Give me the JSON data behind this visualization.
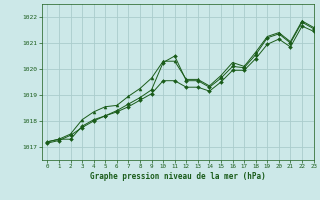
{
  "title": "Graphe pression niveau de la mer (hPa)",
  "bg_color": "#cce8e8",
  "grid_color": "#aacccc",
  "line_color": "#1a5c1a",
  "xlim": [
    -0.5,
    23
  ],
  "ylim": [
    1016.5,
    1022.5
  ],
  "yticks": [
    1017,
    1018,
    1019,
    1020,
    1021,
    1022
  ],
  "xticks": [
    0,
    1,
    2,
    3,
    4,
    5,
    6,
    7,
    8,
    9,
    10,
    11,
    12,
    13,
    14,
    15,
    16,
    17,
    18,
    19,
    20,
    21,
    22,
    23
  ],
  "series1_x": [
    0,
    1,
    2,
    3,
    4,
    5,
    6,
    7,
    8,
    9,
    10,
    11,
    12,
    13,
    14,
    15,
    16,
    17,
    18,
    19,
    20,
    21,
    22,
    23
  ],
  "series1_y": [
    1017.2,
    1017.3,
    1017.3,
    1017.8,
    1018.05,
    1018.2,
    1018.4,
    1018.65,
    1018.9,
    1019.2,
    1020.25,
    1020.5,
    1019.55,
    1019.55,
    1019.3,
    1019.65,
    1020.1,
    1020.05,
    1020.55,
    1021.2,
    1021.35,
    1021.0,
    1021.8,
    1021.55
  ],
  "series2_x": [
    0,
    1,
    2,
    3,
    4,
    5,
    6,
    7,
    8,
    9,
    10,
    11,
    12,
    13,
    14,
    15,
    16,
    17,
    18,
    19,
    20,
    21,
    22,
    23
  ],
  "series2_y": [
    1017.15,
    1017.25,
    1017.45,
    1017.75,
    1018.0,
    1018.2,
    1018.35,
    1018.55,
    1018.8,
    1019.05,
    1019.55,
    1019.55,
    1019.3,
    1019.3,
    1019.15,
    1019.5,
    1019.95,
    1019.95,
    1020.4,
    1020.95,
    1021.15,
    1020.85,
    1021.65,
    1021.45
  ],
  "series3_x": [
    0,
    1,
    2,
    3,
    4,
    5,
    6,
    7,
    8,
    9,
    10,
    11,
    12,
    13,
    14,
    15,
    16,
    17,
    18,
    19,
    20,
    21,
    22,
    23
  ],
  "series3_y": [
    1017.2,
    1017.3,
    1017.5,
    1018.05,
    1018.35,
    1018.55,
    1018.6,
    1018.95,
    1019.25,
    1019.65,
    1020.3,
    1020.3,
    1019.6,
    1019.6,
    1019.35,
    1019.75,
    1020.25,
    1020.1,
    1020.65,
    1021.25,
    1021.4,
    1021.05,
    1021.85,
    1021.6
  ]
}
